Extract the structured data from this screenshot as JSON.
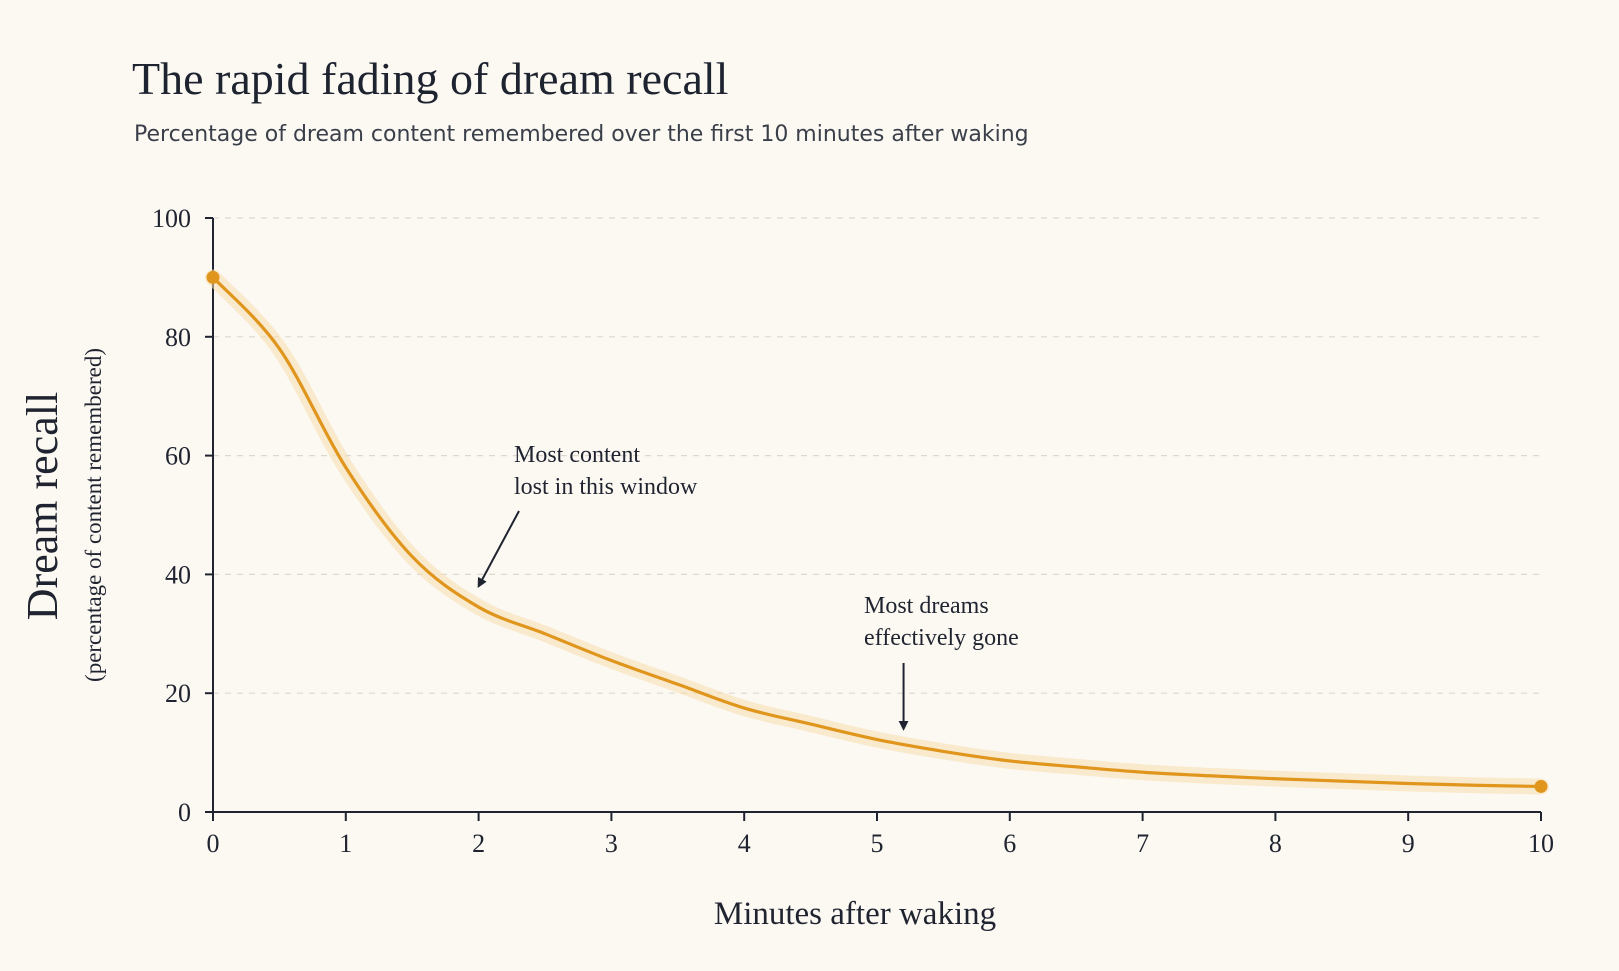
{
  "chart_data": {
    "type": "line",
    "title": "The rapid fading of dream recall",
    "subtitle": "Percentage of dream content remembered over the first 10 minutes after waking",
    "xlabel": "Minutes after waking",
    "ylabel": "Dream recall",
    "ylabel_sub": "(percentage of content remembered)",
    "xlim": [
      0,
      10
    ],
    "ylim": [
      0,
      100
    ],
    "x_ticks": [
      0,
      1,
      2,
      3,
      4,
      5,
      6,
      7,
      8,
      9,
      10
    ],
    "y_ticks": [
      0,
      20,
      40,
      60,
      80,
      100
    ],
    "grid": "horizontal-dashed",
    "series": [
      {
        "x": [
          0,
          0.5,
          1,
          1.5,
          2,
          2.5,
          3,
          3.5,
          4,
          4.5,
          5,
          5.5,
          6,
          6.5,
          7,
          7.5,
          8,
          8.5,
          9,
          9.5,
          10
        ],
        "y": [
          90,
          78,
          58,
          43,
          34.5,
          30,
          25.5,
          21.5,
          17.5,
          14.8,
          12.2,
          10.2,
          8.6,
          7.6,
          6.7,
          6.1,
          5.6,
          5.2,
          4.8,
          4.5,
          4.3
        ]
      }
    ],
    "color": "#e0951c",
    "annotations": [
      {
        "lines": [
          "Most content",
          "lost in this window"
        ],
        "x": 2,
        "y": 38
      },
      {
        "lines": [
          "Most dreams",
          "effectively gone"
        ],
        "x": 5.2,
        "y": 14
      }
    ]
  }
}
